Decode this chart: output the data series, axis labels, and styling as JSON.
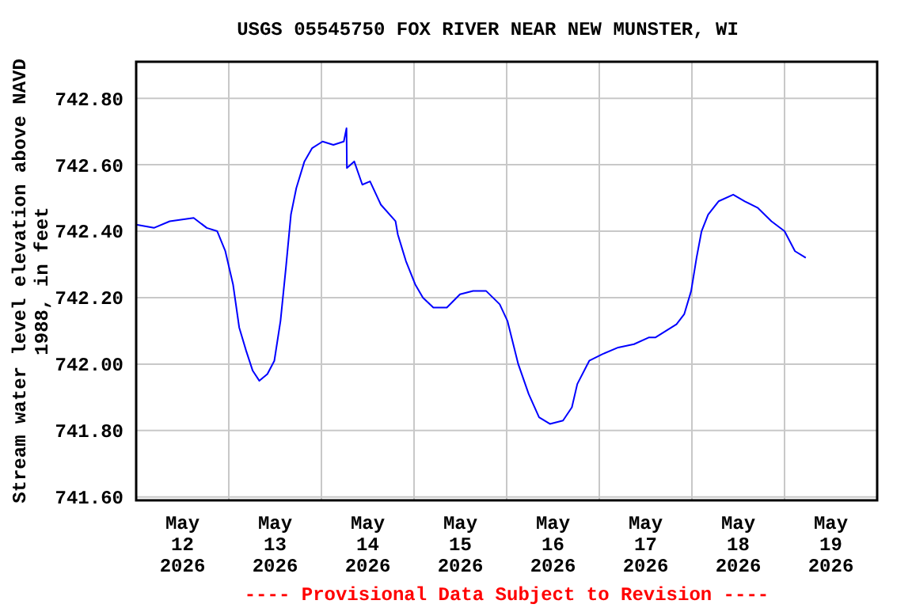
{
  "chart_data": {
    "type": "line",
    "title": "USGS 05545750 FOX RIVER NEAR NEW MUNSTER, WI",
    "ylabel": "Stream water level elevation above NAVD 1988, in feet",
    "annotations": [
      "---- Provisional Data Subject to Revision ----"
    ],
    "x": [
      "2026-05-12T00:00",
      "2026-05-12T04:36",
      "2026-05-12T08:42",
      "2026-05-12T14:54",
      "2026-05-12T18:18",
      "2026-05-12T21:00",
      "2026-05-12T23:06",
      "2026-05-13T01:06",
      "2026-05-13T02:42",
      "2026-05-13T04:30",
      "2026-05-13T06:12",
      "2026-05-13T07:54",
      "2026-05-13T10:00",
      "2026-05-13T11:48",
      "2026-05-13T13:24",
      "2026-05-13T14:48",
      "2026-05-13T16:06",
      "2026-05-13T17:30",
      "2026-05-13T19:36",
      "2026-05-13T21:36",
      "2026-05-14T00:18",
      "2026-05-14T03:06",
      "2026-05-14T05:48",
      "2026-05-14T06:30",
      "2026-05-14T06:36",
      "2026-05-14T08:30",
      "2026-05-14T10:36",
      "2026-05-14T12:36",
      "2026-05-14T15:24",
      "2026-05-14T19:12",
      "2026-05-14T19:48",
      "2026-05-14T21:54",
      "2026-05-15T00:18",
      "2026-05-15T02:18",
      "2026-05-15T05:00",
      "2026-05-15T08:30",
      "2026-05-15T11:54",
      "2026-05-15T15:18",
      "2026-05-15T18:42",
      "2026-05-15T22:12",
      "2026-05-16T00:12",
      "2026-05-16T03:00",
      "2026-05-16T05:42",
      "2026-05-16T08:24",
      "2026-05-16T11:12",
      "2026-05-16T14:36",
      "2026-05-16T16:54",
      "2026-05-16T18:18",
      "2026-05-16T21:24",
      "2026-05-17T00:48",
      "2026-05-17T04:54",
      "2026-05-17T09:00",
      "2026-05-17T12:48",
      "2026-05-17T14:30",
      "2026-05-17T20:00",
      "2026-05-17T22:00",
      "2026-05-17T23:48",
      "2026-05-18T01:12",
      "2026-05-18T02:30",
      "2026-05-18T04:12",
      "2026-05-18T06:54",
      "2026-05-18T10:42",
      "2026-05-18T13:42",
      "2026-05-18T17:06",
      "2026-05-18T20:36",
      "2026-05-19T00:00",
      "2026-05-19T02:42",
      "2026-05-19T05:30"
    ],
    "series": [
      {
        "color": "#0000ff",
        "values": [
          742.42,
          742.41,
          742.43,
          742.44,
          742.41,
          742.4,
          742.34,
          742.24,
          742.11,
          742.04,
          741.98,
          741.95,
          741.97,
          742.01,
          742.13,
          742.29,
          742.45,
          742.53,
          742.61,
          742.65,
          742.67,
          742.66,
          742.67,
          742.71,
          742.59,
          742.61,
          742.54,
          742.55,
          742.48,
          742.43,
          742.39,
          742.31,
          742.24,
          742.2,
          742.17,
          742.17,
          742.21,
          742.22,
          742.22,
          742.18,
          742.13,
          742.0,
          741.91,
          741.84,
          741.82,
          741.83,
          741.87,
          741.94,
          742.01,
          742.03,
          742.05,
          742.06,
          742.08,
          742.08,
          742.12,
          742.15,
          742.22,
          742.32,
          742.4,
          742.45,
          742.49,
          742.51,
          742.49,
          742.47,
          742.43,
          742.4,
          742.34,
          742.32
        ]
      }
    ],
    "xlim": [
      "2026-05-12T00:00",
      "2026-05-20T00:00"
    ],
    "xticks": [
      {
        "value": "2026-05-12T12:00",
        "label": "May\n12\n2026"
      },
      {
        "value": "2026-05-13T12:00",
        "label": "May\n13\n2026"
      },
      {
        "value": "2026-05-14T12:00",
        "label": "May\n14\n2026"
      },
      {
        "value": "2026-05-15T12:00",
        "label": "May\n15\n2026"
      },
      {
        "value": "2026-05-16T12:00",
        "label": "May\n16\n2026"
      },
      {
        "value": "2026-05-17T12:00",
        "label": "May\n17\n2026"
      },
      {
        "value": "2026-05-18T12:00",
        "label": "May\n18\n2026"
      },
      {
        "value": "2026-05-19T12:00",
        "label": "May\n19\n2026"
      },
      {
        "value": "2026-05-13T00:00",
        "label": null
      },
      {
        "value": "2026-05-14T00:00",
        "label": null
      },
      {
        "value": "2026-05-15T00:00",
        "label": null
      },
      {
        "value": "2026-05-16T00:00",
        "label": null
      },
      {
        "value": "2026-05-17T00:00",
        "label": null
      },
      {
        "value": "2026-05-18T00:00",
        "label": null
      },
      {
        "value": "2026-05-19T00:00",
        "label": null
      }
    ],
    "ylim": [
      741.59,
      742.91
    ],
    "yticks": [
      {
        "value": 741.6,
        "label": "741.60"
      },
      {
        "value": 741.8,
        "label": "741.80"
      },
      {
        "value": 742.0,
        "label": "742.00"
      },
      {
        "value": 742.2,
        "label": "742.20"
      },
      {
        "value": 742.4,
        "label": "742.40"
      },
      {
        "value": 742.6,
        "label": "742.60"
      },
      {
        "value": 742.8,
        "label": "742.80"
      }
    ],
    "grid": true,
    "marker": "none",
    "line_style": "solid"
  }
}
